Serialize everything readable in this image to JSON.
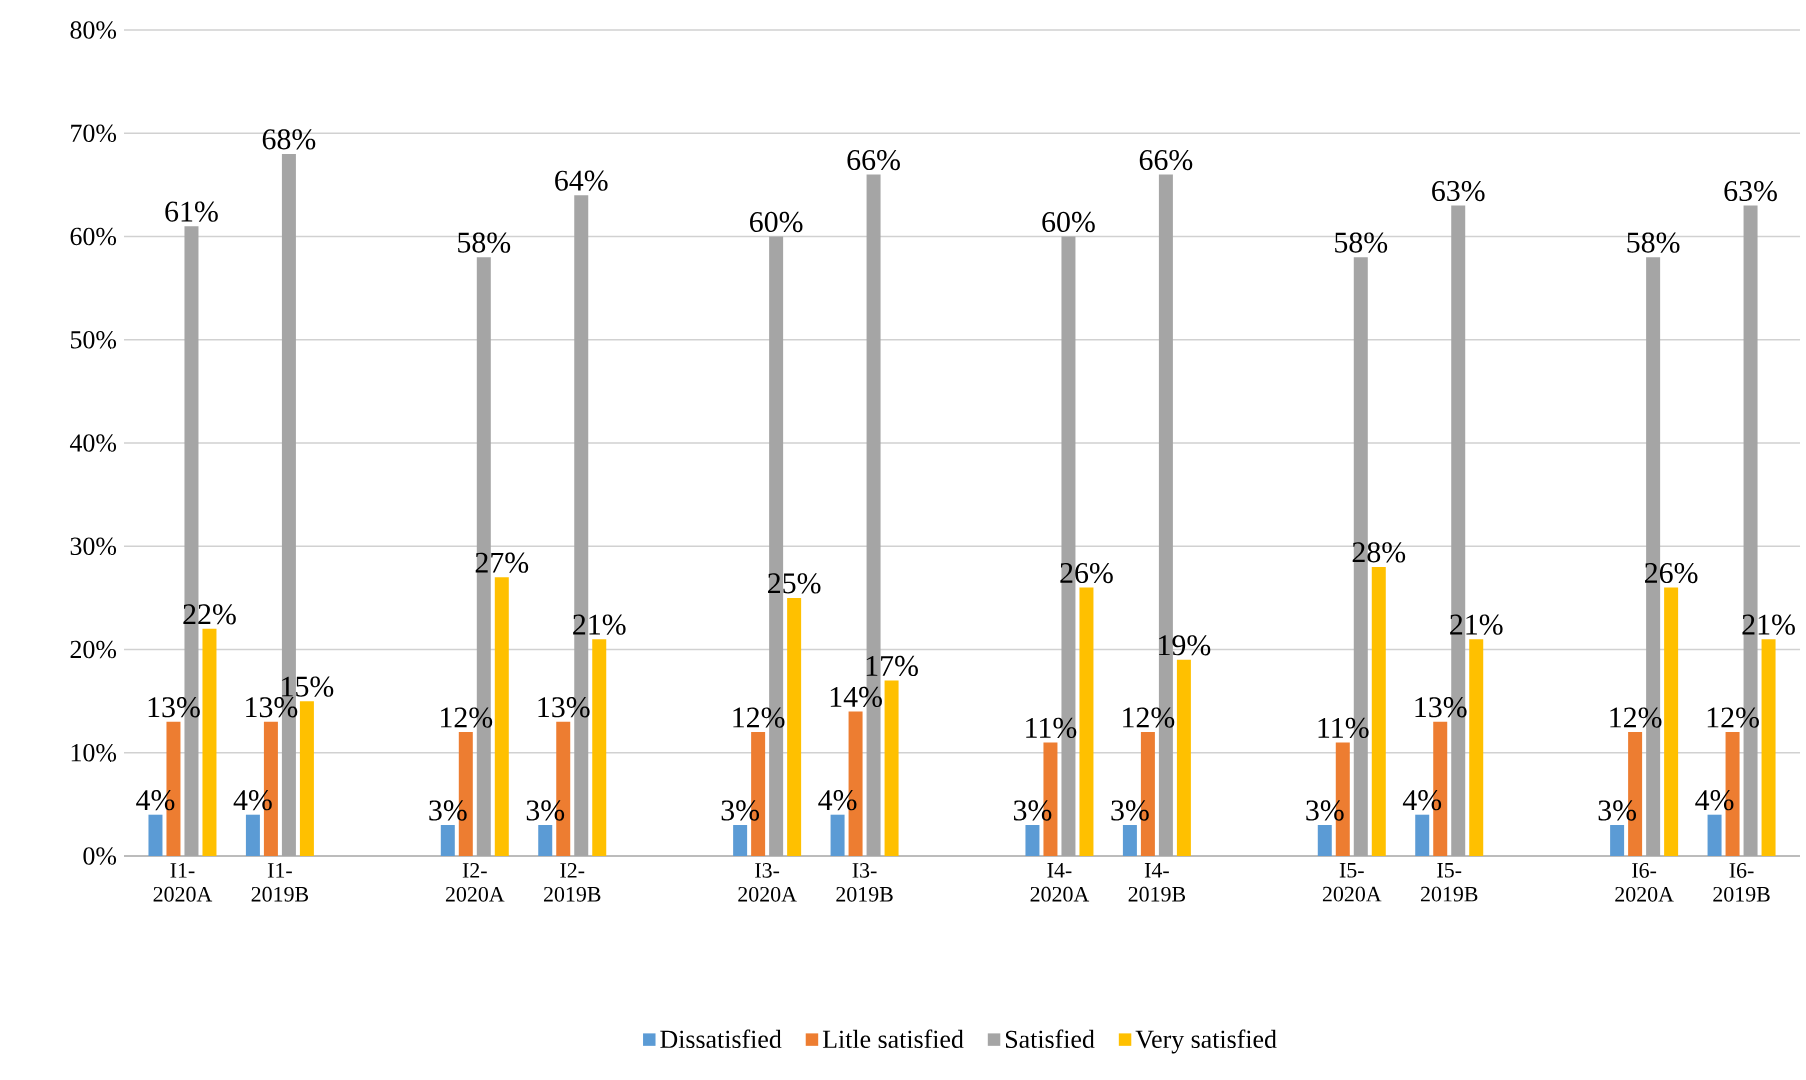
{
  "chart_data": {
    "type": "bar",
    "categories": [
      "I1-2020A",
      "I1-2019B",
      null,
      "I2-2020A",
      "I2-2019B",
      null,
      "I3-2020A",
      "I3-2019B",
      null,
      "I4-2020A",
      "I4-2019B",
      null,
      "I5-2020A",
      "I5-2019B",
      null,
      "I6-2020A",
      "I6-2019B"
    ],
    "series": [
      {
        "name": "Dissatisfied",
        "color": "#5b9bd5",
        "values": [
          4,
          4,
          null,
          3,
          3,
          null,
          3,
          4,
          null,
          3,
          3,
          null,
          3,
          4,
          null,
          3,
          4
        ],
        "value_labels": [
          "4%",
          "4%",
          null,
          "3%",
          "3%",
          null,
          "3%",
          "4%",
          null,
          "3%",
          "3%",
          null,
          "3%",
          "4%",
          null,
          "3%",
          "4%"
        ]
      },
      {
        "name": "Litle satisfied",
        "color": "#ed7d31",
        "values": [
          13,
          13,
          null,
          12,
          13,
          null,
          12,
          14,
          null,
          11,
          12,
          null,
          11,
          13,
          null,
          12,
          12
        ],
        "value_labels": [
          "13%",
          "13%",
          null,
          "12%",
          "13%",
          null,
          "12%",
          "14%",
          null,
          "11%",
          "12%",
          null,
          "11%",
          "13%",
          null,
          "12%",
          "12%"
        ]
      },
      {
        "name": "Satisfied",
        "color": "#a5a5a5",
        "values": [
          61,
          68,
          null,
          58,
          64,
          null,
          60,
          66,
          null,
          60,
          66,
          null,
          58,
          63,
          null,
          58,
          63
        ],
        "value_labels": [
          "61%",
          "68%",
          null,
          "58%",
          "64%",
          null,
          "60%",
          "66%",
          null,
          "60%",
          "66%",
          null,
          "58%",
          "63%",
          null,
          "58%",
          "63%"
        ]
      },
      {
        "name": "Very satisfied",
        "color": "#ffc000",
        "values": [
          22,
          15,
          null,
          27,
          21,
          null,
          25,
          17,
          null,
          26,
          19,
          null,
          28,
          21,
          null,
          26,
          21
        ],
        "value_labels": [
          "22%",
          "15%",
          null,
          "27%",
          "21%",
          null,
          "25%",
          "17%",
          null,
          "26%",
          "19%",
          null,
          "28%",
          "21%",
          null,
          "26%",
          "21%"
        ]
      }
    ],
    "ylim": [
      0,
      80
    ],
    "yticks": [
      {
        "value": 0,
        "label": "0%"
      },
      {
        "value": 10,
        "label": "10%"
      },
      {
        "value": 20,
        "label": "20%"
      },
      {
        "value": 30,
        "label": "30%"
      },
      {
        "value": 40,
        "label": "40%"
      },
      {
        "value": 50,
        "label": "50%"
      },
      {
        "value": 60,
        "label": "60%"
      },
      {
        "value": 70,
        "label": "70%"
      },
      {
        "value": 80,
        "label": "80%"
      }
    ],
    "grid": "y",
    "legend": "bottom"
  }
}
